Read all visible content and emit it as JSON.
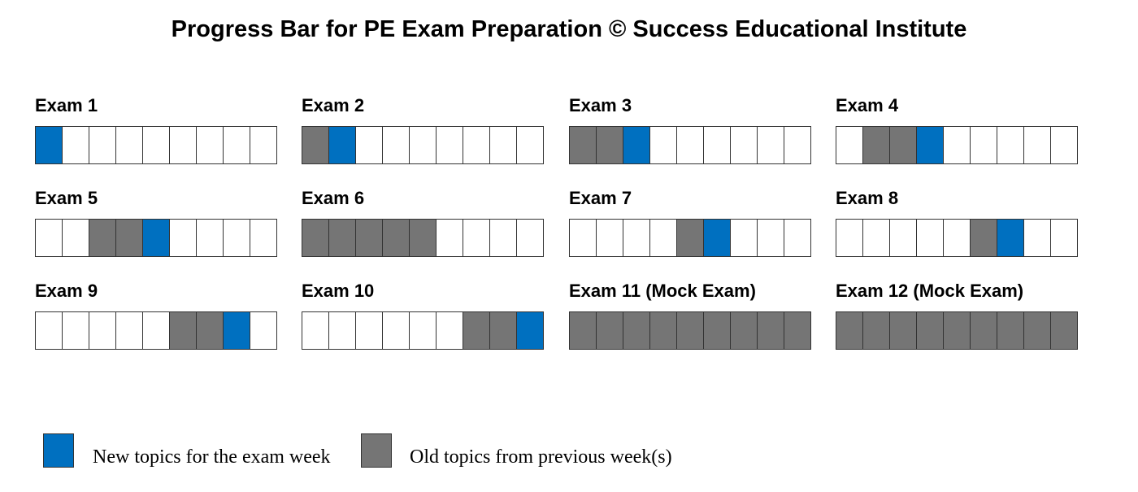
{
  "title": "Progress Bar for PE Exam Preparation © Success Educational Institute",
  "colors": {
    "new": "#0070c0",
    "old": "#757575",
    "empty": "#ffffff"
  },
  "exams": [
    {
      "label": "Exam 1",
      "segments": [
        "new",
        "empty",
        "empty",
        "empty",
        "empty",
        "empty",
        "empty",
        "empty",
        "empty"
      ]
    },
    {
      "label": "Exam 2",
      "segments": [
        "old",
        "new",
        "empty",
        "empty",
        "empty",
        "empty",
        "empty",
        "empty",
        "empty"
      ]
    },
    {
      "label": "Exam 3",
      "segments": [
        "old",
        "old",
        "new",
        "empty",
        "empty",
        "empty",
        "empty",
        "empty",
        "empty"
      ]
    },
    {
      "label": "Exam 4",
      "segments": [
        "empty",
        "old",
        "old",
        "new",
        "empty",
        "empty",
        "empty",
        "empty",
        "empty"
      ]
    },
    {
      "label": "Exam 5",
      "segments": [
        "empty",
        "empty",
        "old",
        "old",
        "new",
        "empty",
        "empty",
        "empty",
        "empty"
      ]
    },
    {
      "label": "Exam 6",
      "segments": [
        "old",
        "old",
        "old",
        "old",
        "old",
        "empty",
        "empty",
        "empty",
        "empty"
      ]
    },
    {
      "label": "Exam 7",
      "segments": [
        "empty",
        "empty",
        "empty",
        "empty",
        "old",
        "new",
        "empty",
        "empty",
        "empty"
      ]
    },
    {
      "label": "Exam 8",
      "segments": [
        "empty",
        "empty",
        "empty",
        "empty",
        "empty",
        "old",
        "new",
        "empty",
        "empty"
      ]
    },
    {
      "label": "Exam 9",
      "segments": [
        "empty",
        "empty",
        "empty",
        "empty",
        "empty",
        "old",
        "old",
        "new",
        "empty"
      ]
    },
    {
      "label": "Exam 10",
      "segments": [
        "empty",
        "empty",
        "empty",
        "empty",
        "empty",
        "empty",
        "old",
        "old",
        "new"
      ]
    },
    {
      "label": "Exam 11 (Mock Exam)",
      "segments": [
        "old",
        "old",
        "old",
        "old",
        "old",
        "old",
        "old",
        "old",
        "old"
      ]
    },
    {
      "label": "Exam 12 (Mock Exam)",
      "segments": [
        "old",
        "old",
        "old",
        "old",
        "old",
        "old",
        "old",
        "old",
        "old"
      ]
    }
  ],
  "legend": {
    "new_label": "New topics for the exam week",
    "old_label": "Old topics from previous week(s)"
  }
}
